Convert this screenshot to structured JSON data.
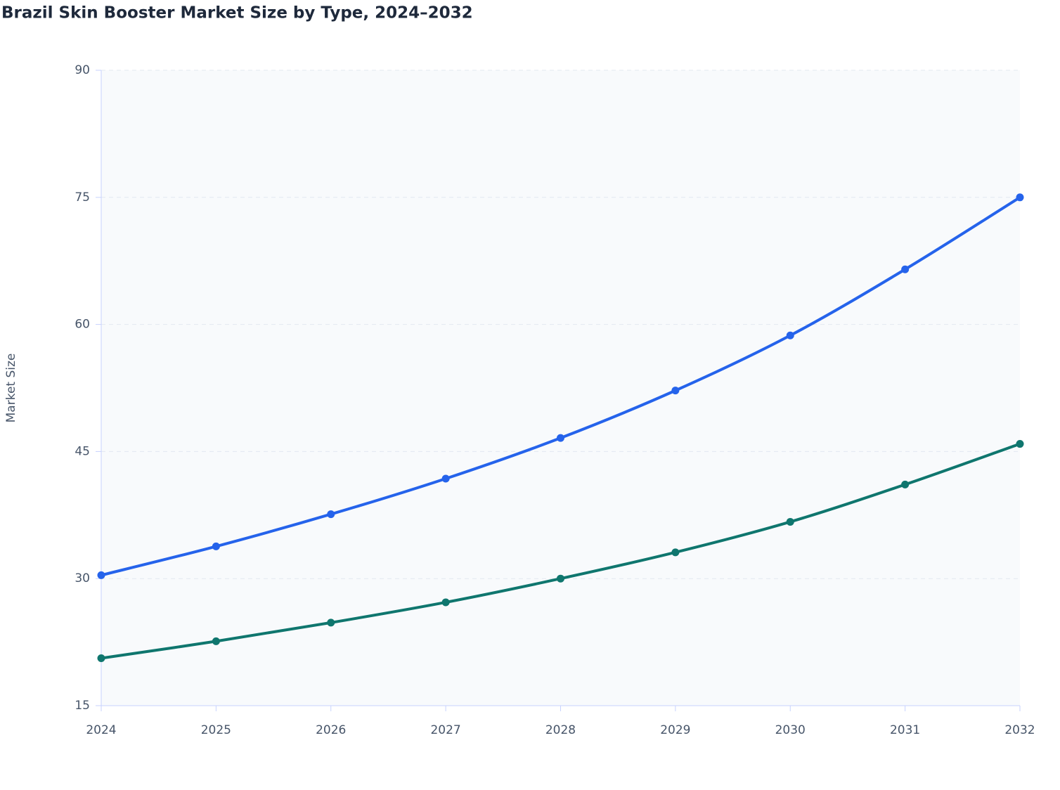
{
  "chart_data": {
    "type": "line",
    "title": "Brazil Skin Booster Market Size by Type, 2024–2032",
    "y_label": "Market Size",
    "categories": [
      "2024",
      "2025",
      "2026",
      "2027",
      "2028",
      "2029",
      "2030",
      "2031",
      "2032"
    ],
    "series": [
      {
        "color": "#2563eb",
        "values": [
          30.4,
          33.8,
          37.6,
          41.8,
          46.6,
          52.2,
          58.7,
          66.5,
          75
        ]
      },
      {
        "color": "#0f766e",
        "values": [
          20.6,
          22.6,
          24.8,
          27.2,
          30.0,
          33.1,
          36.7,
          41.1,
          45.9
        ]
      }
    ],
    "ylim": [
      15,
      90
    ],
    "yticks": [
      15,
      30,
      45,
      60,
      75,
      90
    ],
    "grid": true
  }
}
